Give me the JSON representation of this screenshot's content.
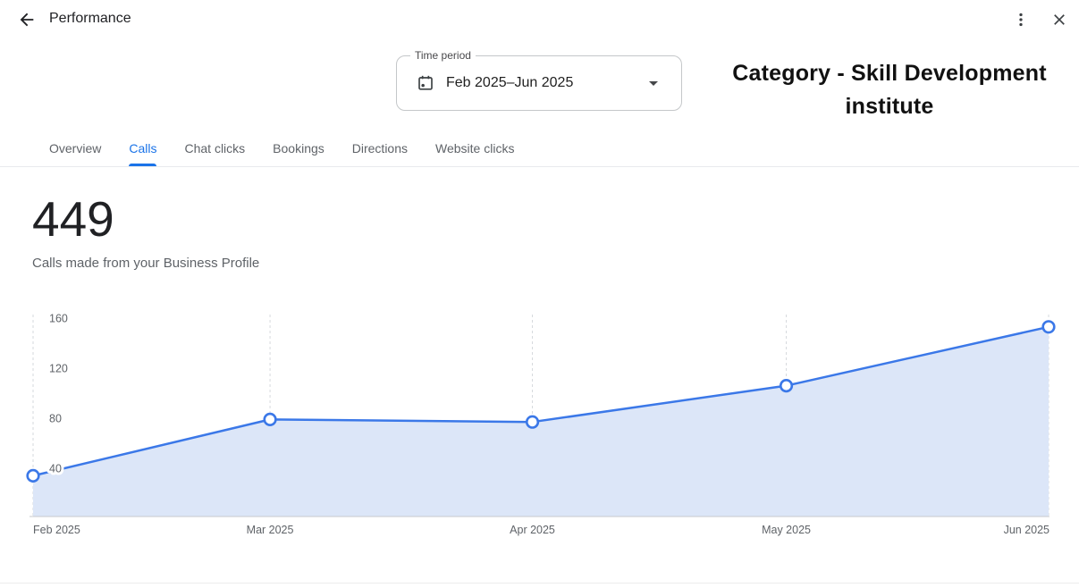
{
  "header": {
    "title": "Performance",
    "back_icon": "arrow-left",
    "more_icon": "kebab-menu",
    "close_icon": "close"
  },
  "time_period": {
    "label": "Time period",
    "value": "Feb 2025–Jun 2025",
    "icon": "calendar-icon"
  },
  "annotation": {
    "text": "Category - Skill Development institute"
  },
  "tabs": [
    {
      "label": "Overview",
      "selected": false
    },
    {
      "label": "Calls",
      "selected": true
    },
    {
      "label": "Chat clicks",
      "selected": false
    },
    {
      "label": "Bookings",
      "selected": false
    },
    {
      "label": "Directions",
      "selected": false
    },
    {
      "label": "Website clicks",
      "selected": false
    }
  ],
  "metric": {
    "value": "449",
    "description": "Calls made from your Business Profile"
  },
  "chart_data": {
    "type": "area",
    "series_name": "Calls",
    "x": [
      "Feb 2025",
      "Mar 2025",
      "Apr 2025",
      "May 2025",
      "Jun 2025"
    ],
    "x_offsets_days": [
      0,
      28,
      59,
      89,
      120
    ],
    "values": [
      34,
      79,
      77,
      106,
      153
    ],
    "total": 449,
    "yticks": [
      40,
      80,
      120,
      160
    ],
    "ylim": [
      0,
      170
    ],
    "grid": "vertical-dashed",
    "legend": "none",
    "line_color": "#3b78e8",
    "area_color": "#dce6f8",
    "gridline_color": "#d6d9dd",
    "axis_color": "#c7cacd",
    "point_style": "open-circle"
  },
  "colors": {
    "accent": "#1a73e8",
    "text_primary": "#202124",
    "text_secondary": "#5f6368",
    "divider": "#e8eaed"
  }
}
